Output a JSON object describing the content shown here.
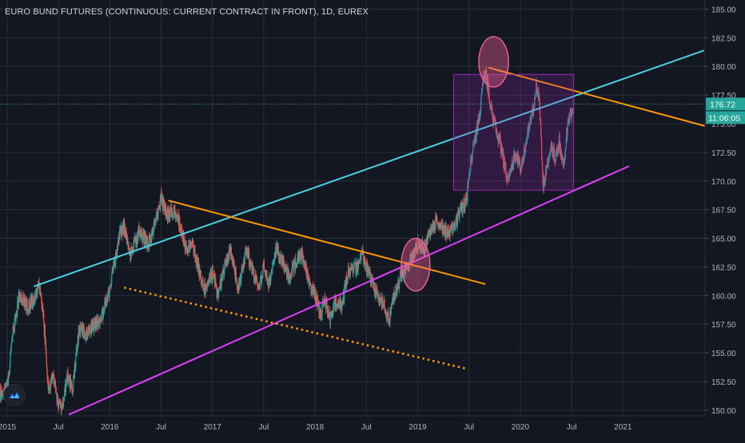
{
  "chart_data": {
    "type": "candlestick",
    "title": "EURO BUND FUTURES (CONTINUOUS: CURRENT CONTRACT IN FRONT), 1D, EUREX",
    "y_ticks": [
      "185.00",
      "182.50",
      "180.00",
      "177.50",
      "175.00",
      "172.50",
      "170.00",
      "167.50",
      "165.00",
      "162.50",
      "160.00",
      "157.50",
      "155.00",
      "152.50",
      "150.00"
    ],
    "ylim": [
      149.5,
      185.8
    ],
    "x_ticks": [
      {
        "label": "2015",
        "t": 2015.0
      },
      {
        "label": "Jul",
        "t": 2015.5
      },
      {
        "label": "2016",
        "t": 2016.0
      },
      {
        "label": "Jul",
        "t": 2016.5
      },
      {
        "label": "2017",
        "t": 2017.0
      },
      {
        "label": "Jul",
        "t": 2017.5
      },
      {
        "label": "2018",
        "t": 2018.0
      },
      {
        "label": "Jul",
        "t": 2018.5
      },
      {
        "label": "2019",
        "t": 2019.0
      },
      {
        "label": "Jul",
        "t": 2019.5
      },
      {
        "label": "2020",
        "t": 2020.0
      },
      {
        "label": "Jul",
        "t": 2020.5
      },
      {
        "label": "2021",
        "t": 2021.0
      }
    ],
    "xlim": [
      2014.93,
      2021.8
    ],
    "grid": true,
    "price_path": [
      [
        2014.93,
        151.5
      ],
      [
        2015.0,
        152.0
      ],
      [
        2015.06,
        157.0
      ],
      [
        2015.12,
        160.0
      ],
      [
        2015.2,
        159.0
      ],
      [
        2015.28,
        160.0
      ],
      [
        2015.31,
        160.8
      ],
      [
        2015.35,
        158.5
      ],
      [
        2015.38,
        155.0
      ],
      [
        2015.4,
        151.5
      ],
      [
        2015.45,
        153.0
      ],
      [
        2015.5,
        150.5
      ],
      [
        2015.54,
        150.0
      ],
      [
        2015.58,
        153.0
      ],
      [
        2015.64,
        152.0
      ],
      [
        2015.7,
        157.0
      ],
      [
        2015.78,
        156.5
      ],
      [
        2015.86,
        157.5
      ],
      [
        2015.92,
        158.0
      ],
      [
        2016.0,
        160.5
      ],
      [
        2016.05,
        163.0
      ],
      [
        2016.1,
        165.5
      ],
      [
        2016.14,
        166.0
      ],
      [
        2016.2,
        163.5
      ],
      [
        2016.28,
        165.5
      ],
      [
        2016.38,
        164.5
      ],
      [
        2016.45,
        166.5
      ],
      [
        2016.5,
        168.5
      ],
      [
        2016.55,
        167.0
      ],
      [
        2016.62,
        167.5
      ],
      [
        2016.68,
        166.5
      ],
      [
        2016.74,
        164.0
      ],
      [
        2016.8,
        164.5
      ],
      [
        2016.86,
        162.5
      ],
      [
        2016.92,
        160.5
      ],
      [
        2017.0,
        162.0
      ],
      [
        2017.05,
        160.0
      ],
      [
        2017.12,
        162.5
      ],
      [
        2017.17,
        164.0
      ],
      [
        2017.2,
        163.0
      ],
      [
        2017.25,
        160.5
      ],
      [
        2017.33,
        164.0
      ],
      [
        2017.4,
        162.0
      ],
      [
        2017.45,
        160.5
      ],
      [
        2017.5,
        162.5
      ],
      [
        2017.55,
        161.0
      ],
      [
        2017.62,
        164.0
      ],
      [
        2017.68,
        163.0
      ],
      [
        2017.75,
        161.5
      ],
      [
        2017.82,
        163.0
      ],
      [
        2017.88,
        163.5
      ],
      [
        2017.95,
        161.0
      ],
      [
        2018.0,
        160.0
      ],
      [
        2018.05,
        158.5
      ],
      [
        2018.1,
        159.5
      ],
      [
        2018.15,
        158.0
      ],
      [
        2018.2,
        159.5
      ],
      [
        2018.26,
        159.0
      ],
      [
        2018.32,
        162.0
      ],
      [
        2018.4,
        162.5
      ],
      [
        2018.46,
        163.5
      ],
      [
        2018.52,
        162.0
      ],
      [
        2018.58,
        160.5
      ],
      [
        2018.64,
        159.5
      ],
      [
        2018.68,
        159.0
      ],
      [
        2018.72,
        157.8
      ],
      [
        2018.77,
        160.0
      ],
      [
        2018.83,
        161.5
      ],
      [
        2018.9,
        162.5
      ],
      [
        2018.95,
        163.5
      ],
      [
        2019.0,
        164.5
      ],
      [
        2019.06,
        164.0
      ],
      [
        2019.12,
        165.5
      ],
      [
        2019.18,
        166.5
      ],
      [
        2019.24,
        166.0
      ],
      [
        2019.3,
        165.5
      ],
      [
        2019.36,
        166.0
      ],
      [
        2019.4,
        167.0
      ],
      [
        2019.45,
        168.0
      ],
      [
        2019.48,
        168.5
      ],
      [
        2019.5,
        171.0
      ],
      [
        2019.55,
        173.0
      ],
      [
        2019.6,
        175.5
      ],
      [
        2019.63,
        178.0
      ],
      [
        2019.65,
        179.5
      ],
      [
        2019.68,
        178.5
      ],
      [
        2019.72,
        176.0
      ],
      [
        2019.76,
        174.5
      ],
      [
        2019.8,
        173.5
      ],
      [
        2019.84,
        171.5
      ],
      [
        2019.88,
        170.0
      ],
      [
        2019.92,
        171.5
      ],
      [
        2019.96,
        172.5
      ],
      [
        2020.0,
        171.0
      ],
      [
        2020.04,
        172.5
      ],
      [
        2020.08,
        174.5
      ],
      [
        2020.12,
        176.0
      ],
      [
        2020.16,
        178.5
      ],
      [
        2020.19,
        176.5
      ],
      [
        2020.22,
        169.5
      ],
      [
        2020.25,
        171.0
      ],
      [
        2020.3,
        173.0
      ],
      [
        2020.34,
        172.0
      ],
      [
        2020.38,
        173.5
      ],
      [
        2020.42,
        171.0
      ],
      [
        2020.45,
        174.0
      ],
      [
        2020.48,
        175.5
      ],
      [
        2020.52,
        176.72
      ]
    ],
    "drawings": [
      {
        "kind": "trendline",
        "color": "#4dd0e1",
        "from": [
          2015.26,
          160.8
        ],
        "to": [
          2021.79,
          181.4
        ]
      },
      {
        "kind": "trendline",
        "color": "#e040fb",
        "from": [
          2015.6,
          149.6
        ],
        "to": [
          2021.06,
          171.3
        ]
      },
      {
        "kind": "trendline",
        "color": "#ff9800",
        "from": [
          2016.57,
          168.3
        ],
        "to": [
          2019.66,
          161.0
        ]
      },
      {
        "kind": "trendline",
        "color": "#ff9800",
        "from": [
          2019.69,
          179.9
        ],
        "to": [
          2021.8,
          174.8
        ]
      },
      {
        "kind": "dotted",
        "color": "#ff9800",
        "from": [
          2016.14,
          160.7
        ],
        "to": [
          2019.48,
          153.6
        ]
      },
      {
        "kind": "rectangle",
        "color": "#9c27b0",
        "from": [
          2019.35,
          179.3
        ],
        "to": [
          2020.52,
          169.2
        ]
      },
      {
        "kind": "ellipse",
        "color": "#f06292",
        "center": [
          2019.74,
          180.4
        ],
        "r": [
          0.145,
          2.2
        ]
      },
      {
        "kind": "ellipse",
        "color": "#f06292",
        "center": [
          2018.98,
          162.7
        ],
        "r": [
          0.14,
          2.3
        ]
      }
    ],
    "last_price": {
      "value": 176.72,
      "label": "176.72",
      "countdown": "11:06:05",
      "color": "#26a69a"
    },
    "colors": {
      "up": "#26a69a",
      "down": "#ef5350",
      "grid": "#2a2e39",
      "text": "#b2b5be",
      "background": "#131722"
    }
  }
}
